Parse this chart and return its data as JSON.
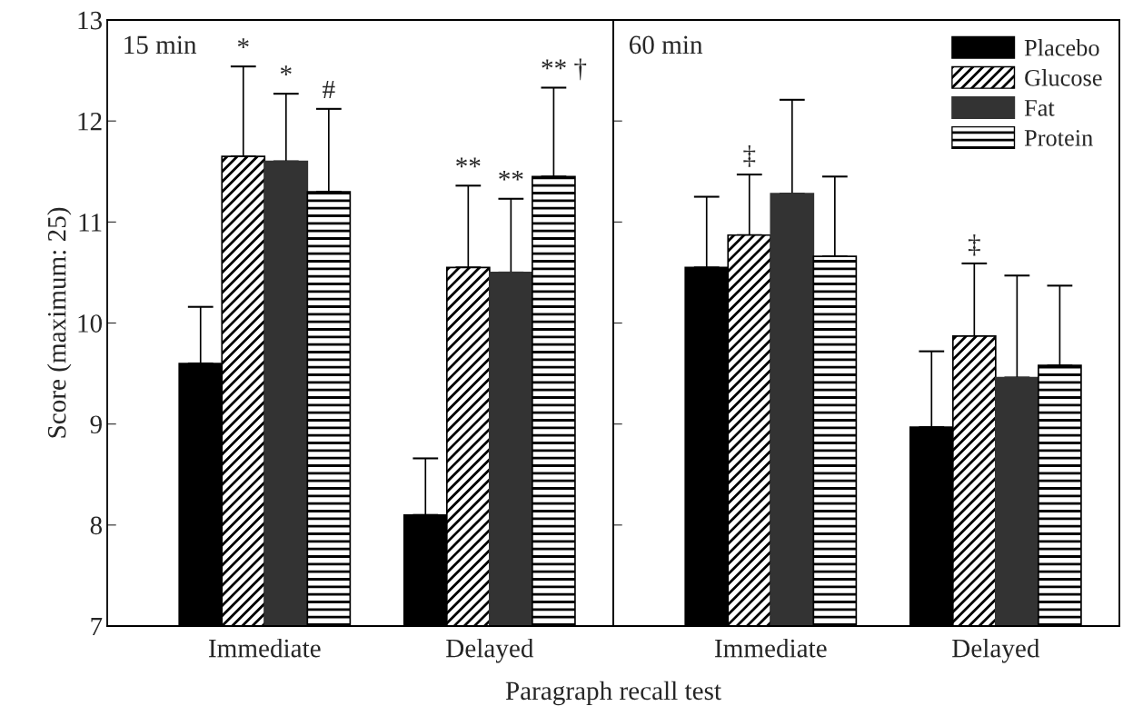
{
  "chart_data": [
    {
      "type": "bar",
      "title": "15 min",
      "ylabel": "Score (maximum: 25)",
      "xlabel": "Paragraph recall test",
      "categories": [
        "Immediate",
        "Delayed"
      ],
      "ylim": [
        7,
        13
      ],
      "yticks": [
        7,
        8,
        9,
        10,
        11,
        12,
        13
      ],
      "grid": false,
      "legend": false,
      "series": [
        {
          "color": "#000000",
          "values": [
            9.6,
            8.1
          ],
          "errors": [
            [
              9.6,
              10.16
            ],
            [
              8.1,
              8.66
            ]
          ]
        },
        {
          "color": "#000000",
          "values": [
            11.65,
            10.55
          ],
          "errors": [
            [
              11.65,
              12.54
            ],
            [
              10.55,
              11.36
            ]
          ]
        },
        {
          "color": "#333333",
          "values": [
            11.6,
            10.5
          ],
          "errors": [
            [
              11.6,
              12.27
            ],
            [
              10.5,
              11.23
            ]
          ]
        },
        {
          "color": "#000000",
          "values": [
            11.3,
            11.45
          ],
          "errors": [
            [
              11.3,
              12.12
            ],
            [
              11.45,
              12.33
            ]
          ]
        }
      ],
      "annotations": [
        "*",
        "*",
        "#",
        "**",
        "**",
        "** †"
      ]
    },
    {
      "type": "bar",
      "title": "60 min",
      "categories": [
        "Immediate",
        "Delayed"
      ],
      "ylim": [
        7,
        13
      ],
      "yticks": [
        7,
        8,
        9,
        10,
        11,
        12,
        13
      ],
      "tick_labels": "x",
      "grid": false,
      "legend": "top right",
      "series": [
        {
          "name": "Placebo",
          "color": "#000000",
          "values": [
            10.55,
            8.97
          ],
          "errors": [
            [
              10.55,
              11.25
            ],
            [
              8.97,
              9.72
            ]
          ]
        },
        {
          "name": "Glucose",
          "color": "#000000",
          "values": [
            10.87,
            9.87
          ],
          "errors": [
            [
              10.87,
              11.47
            ],
            [
              9.87,
              10.59
            ]
          ]
        },
        {
          "name": "Fat",
          "color": "#333333",
          "values": [
            11.28,
            9.46
          ],
          "errors": [
            [
              11.28,
              12.21
            ],
            [
              9.46,
              10.47
            ]
          ]
        },
        {
          "name": "Protein",
          "color": "#000000",
          "values": [
            10.66,
            9.58
          ],
          "errors": [
            [
              10.66,
              11.45
            ],
            [
              9.58,
              10.37
            ]
          ]
        }
      ],
      "annotations": [
        "‡",
        "‡"
      ]
    }
  ]
}
